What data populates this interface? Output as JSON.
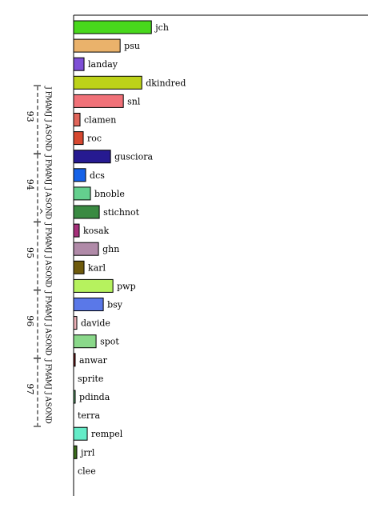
{
  "chart_data": {
    "type": "bar",
    "orientation": "horizontal",
    "categories": [
      "jch",
      "psu",
      "landay",
      "dkindred",
      "snl",
      "clamen",
      "roc",
      "gusciora",
      "dcs",
      "bnoble",
      "stichnot",
      "kosak",
      "ghn",
      "karl",
      "pwp",
      "bsy",
      "davide",
      "spot",
      "anwar",
      "sprite",
      "pdinda",
      "terra",
      "rempel",
      "jrrl",
      "clee"
    ],
    "values": [
      97,
      58,
      13,
      85,
      62,
      8,
      12,
      46,
      15,
      21,
      32,
      7,
      31,
      13,
      49,
      37,
      4,
      28,
      2,
      0,
      2,
      0,
      17,
      4,
      0
    ],
    "colors": [
      "#48d81c",
      "#eab26b",
      "#7e4fd6",
      "#bdd219",
      "#f07178",
      "#e0655a",
      "#d64830",
      "#261a91",
      "#1562e8",
      "#64d08e",
      "#3a8a42",
      "#a5307a",
      "#b08aa8",
      "#6e5a0c",
      "#b6f25e",
      "#5a78e8",
      "#ecb0b6",
      "#8ad88a",
      "#7a1818",
      "#ffffff",
      "#5caa6e",
      "#ffffff",
      "#64ecc8",
      "#3a6e1a",
      "#ffffff"
    ],
    "xlim": [
      0,
      367
    ],
    "time_axis": {
      "axis_label": "^",
      "months": [
        "J",
        "F",
        "M",
        "A",
        "M",
        "J",
        "J",
        "A",
        "S",
        "O",
        "N",
        "D"
      ],
      "years": [
        "93",
        "94",
        "95",
        "96",
        "97"
      ]
    }
  }
}
